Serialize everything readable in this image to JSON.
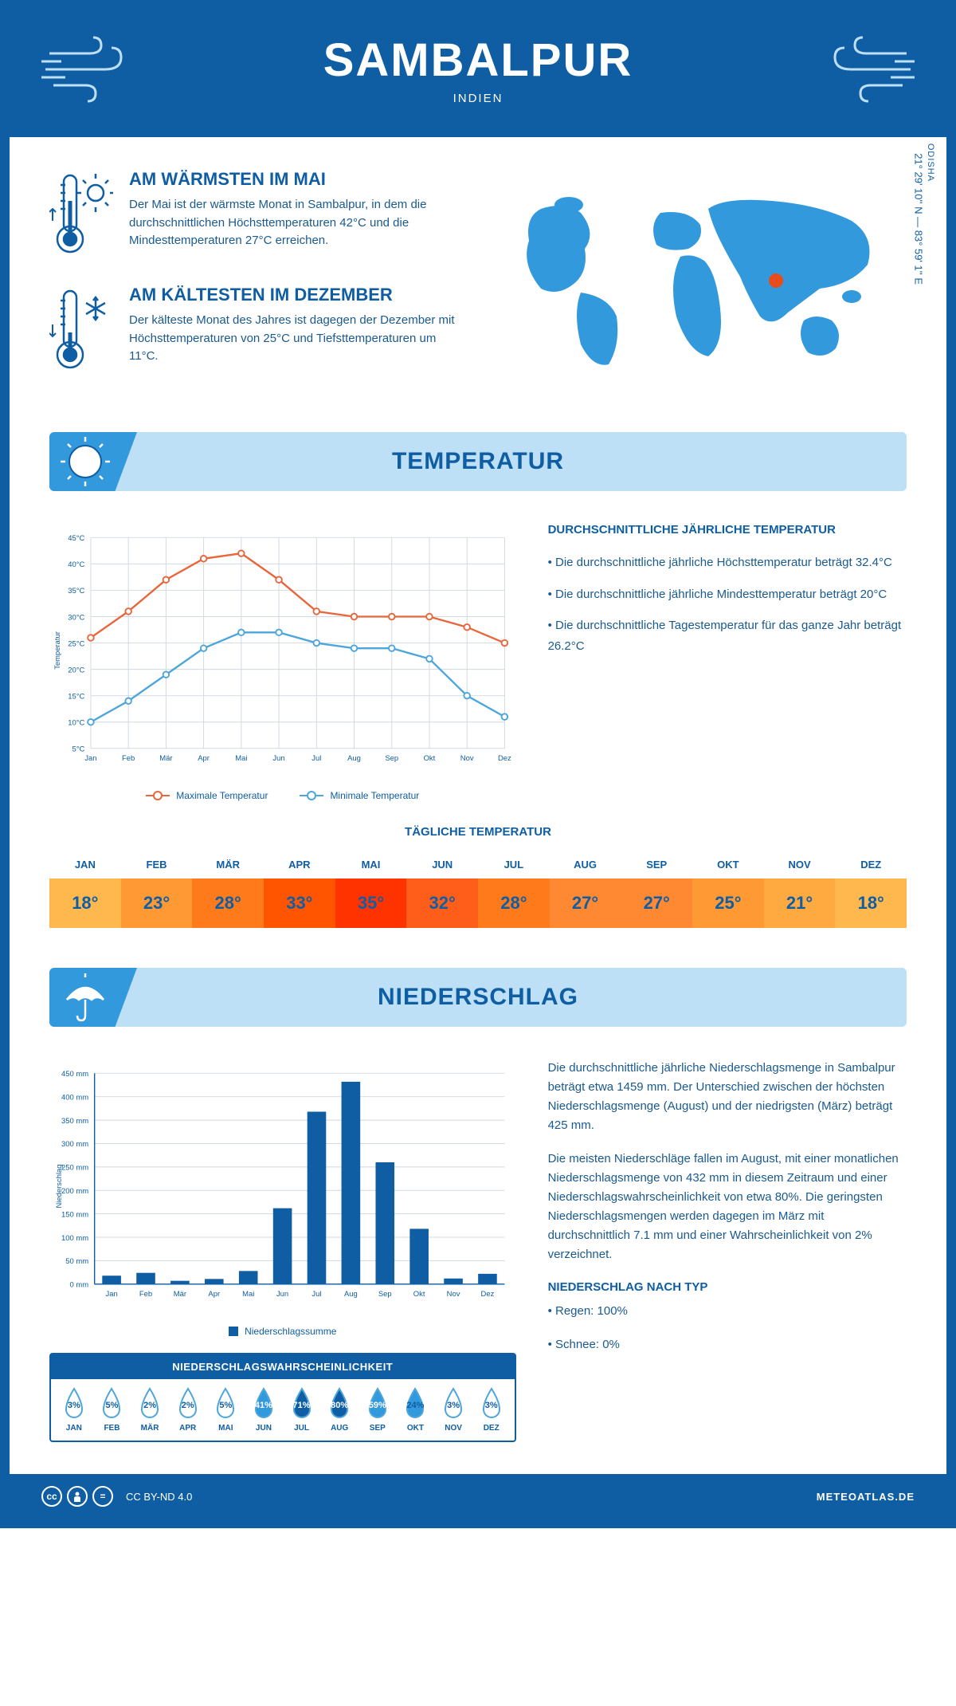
{
  "header": {
    "city": "SAMBALPUR",
    "country": "INDIEN"
  },
  "location": {
    "region": "ODISHA",
    "coords": "21° 29' 10'' N — 83° 59' 1'' E",
    "marker_color": "#e84c1a",
    "map_color": "#3399dd"
  },
  "facts": {
    "warm": {
      "title": "AM WÄRMSTEN IM MAI",
      "text": "Der Mai ist der wärmste Monat in Sambalpur, in dem die durchschnittlichen Höchsttemperaturen 42°C und die Mindesttemperaturen 27°C erreichen."
    },
    "cold": {
      "title": "AM KÄLTESTEN IM DEZEMBER",
      "text": "Der kälteste Monat des Jahres ist dagegen der Dezember mit Höchsttemperaturen von 25°C und Tiefsttemperaturen um 11°C."
    }
  },
  "sections": {
    "temp": "TEMPERATUR",
    "precip": "NIEDERSCHLAG"
  },
  "temp_chart": {
    "months": [
      "Jan",
      "Feb",
      "Mär",
      "Apr",
      "Mai",
      "Jun",
      "Jul",
      "Aug",
      "Sep",
      "Okt",
      "Nov",
      "Dez"
    ],
    "max_series": [
      26,
      31,
      37,
      41,
      42,
      37,
      31,
      30,
      30,
      30,
      28,
      25
    ],
    "min_series": [
      10,
      14,
      19,
      24,
      27,
      27,
      25,
      24,
      24,
      22,
      15,
      11
    ],
    "max_color": "#e8663c",
    "min_color": "#4da6db",
    "y_min": 5,
    "y_max": 45,
    "y_step": 5,
    "y_label": "Temperatur",
    "legend_max": "Maximale Temperatur",
    "legend_min": "Minimale Temperatur",
    "grid_color": "#d0d8e0",
    "axis_color": "#0f5ea3"
  },
  "temp_info": {
    "title": "DURCHSCHNITTLICHE JÄHRLICHE TEMPERATUR",
    "bullets": [
      "• Die durchschnittliche jährliche Höchsttemperatur beträgt 32.4°C",
      "• Die durchschnittliche jährliche Mindesttemperatur beträgt 20°C",
      "• Die durchschnittliche Tagestemperatur für das ganze Jahr beträgt 26.2°C"
    ]
  },
  "daily_temp": {
    "title": "TÄGLICHE TEMPERATUR",
    "months": [
      "JAN",
      "FEB",
      "MÄR",
      "APR",
      "MAI",
      "JUN",
      "JUL",
      "AUG",
      "SEP",
      "OKT",
      "NOV",
      "DEZ"
    ],
    "values": [
      "18°",
      "23°",
      "28°",
      "33°",
      "35°",
      "32°",
      "28°",
      "27°",
      "27°",
      "25°",
      "21°",
      "18°"
    ],
    "bg_colors": [
      "#ffb84d",
      "#ff9933",
      "#ff7a1a",
      "#ff5500",
      "#ff3300",
      "#ff5e1a",
      "#ff7a1a",
      "#ff8833",
      "#ff8833",
      "#ff9933",
      "#ffaa40",
      "#ffb84d"
    ],
    "text_colors": [
      "#0f5ea3",
      "#0f5ea3",
      "#0f5ea3",
      "#0f5ea3",
      "#0f5ea3",
      "#0f5ea3",
      "#0f5ea3",
      "#0f5ea3",
      "#0f5ea3",
      "#0f5ea3",
      "#0f5ea3",
      "#0f5ea3"
    ]
  },
  "precip_chart": {
    "months": [
      "Jan",
      "Feb",
      "Mär",
      "Apr",
      "Mai",
      "Jun",
      "Jul",
      "Aug",
      "Sep",
      "Okt",
      "Nov",
      "Dez"
    ],
    "values": [
      18,
      24,
      7,
      11,
      28,
      162,
      368,
      432,
      260,
      118,
      12,
      22
    ],
    "y_max": 450,
    "y_step": 50,
    "y_label": "Niederschlag",
    "bar_color": "#0f5ea3",
    "legend": "Niederschlagssumme",
    "grid_color": "#d0d8e0"
  },
  "precip_info": {
    "para1": "Die durchschnittliche jährliche Niederschlagsmenge in Sambalpur beträgt etwa 1459 mm. Der Unterschied zwischen der höchsten Niederschlagsmenge (August) und der niedrigsten (März) beträgt 425 mm.",
    "para2": "Die meisten Niederschläge fallen im August, mit einer monatlichen Niederschlagsmenge von 432 mm in diesem Zeitraum und einer Niederschlagswahrscheinlichkeit von etwa 80%. Die geringsten Niederschlagsmengen werden dagegen im März mit durchschnittlich 7.1 mm und einer Wahrscheinlichkeit von 2% verzeichnet.",
    "type_title": "NIEDERSCHLAG NACH TYP",
    "type_rain": "• Regen: 100%",
    "type_snow": "• Schnee: 0%"
  },
  "prob": {
    "title": "NIEDERSCHLAGSWAHRSCHEINLICHKEIT",
    "months": [
      "JAN",
      "FEB",
      "MÄR",
      "APR",
      "MAI",
      "JUN",
      "JUL",
      "AUG",
      "SEP",
      "OKT",
      "NOV",
      "DEZ"
    ],
    "values": [
      "3%",
      "5%",
      "2%",
      "2%",
      "5%",
      "41%",
      "71%",
      "80%",
      "59%",
      "24%",
      "3%",
      "3%"
    ],
    "fill_pct": [
      3,
      5,
      2,
      2,
      5,
      41,
      71,
      80,
      59,
      24,
      3,
      3
    ],
    "outline_color": "#4da6db",
    "fill_color": "#0f5ea3"
  },
  "footer": {
    "license": "CC BY-ND 4.0",
    "site": "METEOATLAS.DE"
  },
  "colors": {
    "primary": "#0f5ea3",
    "light_blue": "#bde0f7",
    "mid_blue": "#3399dd"
  }
}
